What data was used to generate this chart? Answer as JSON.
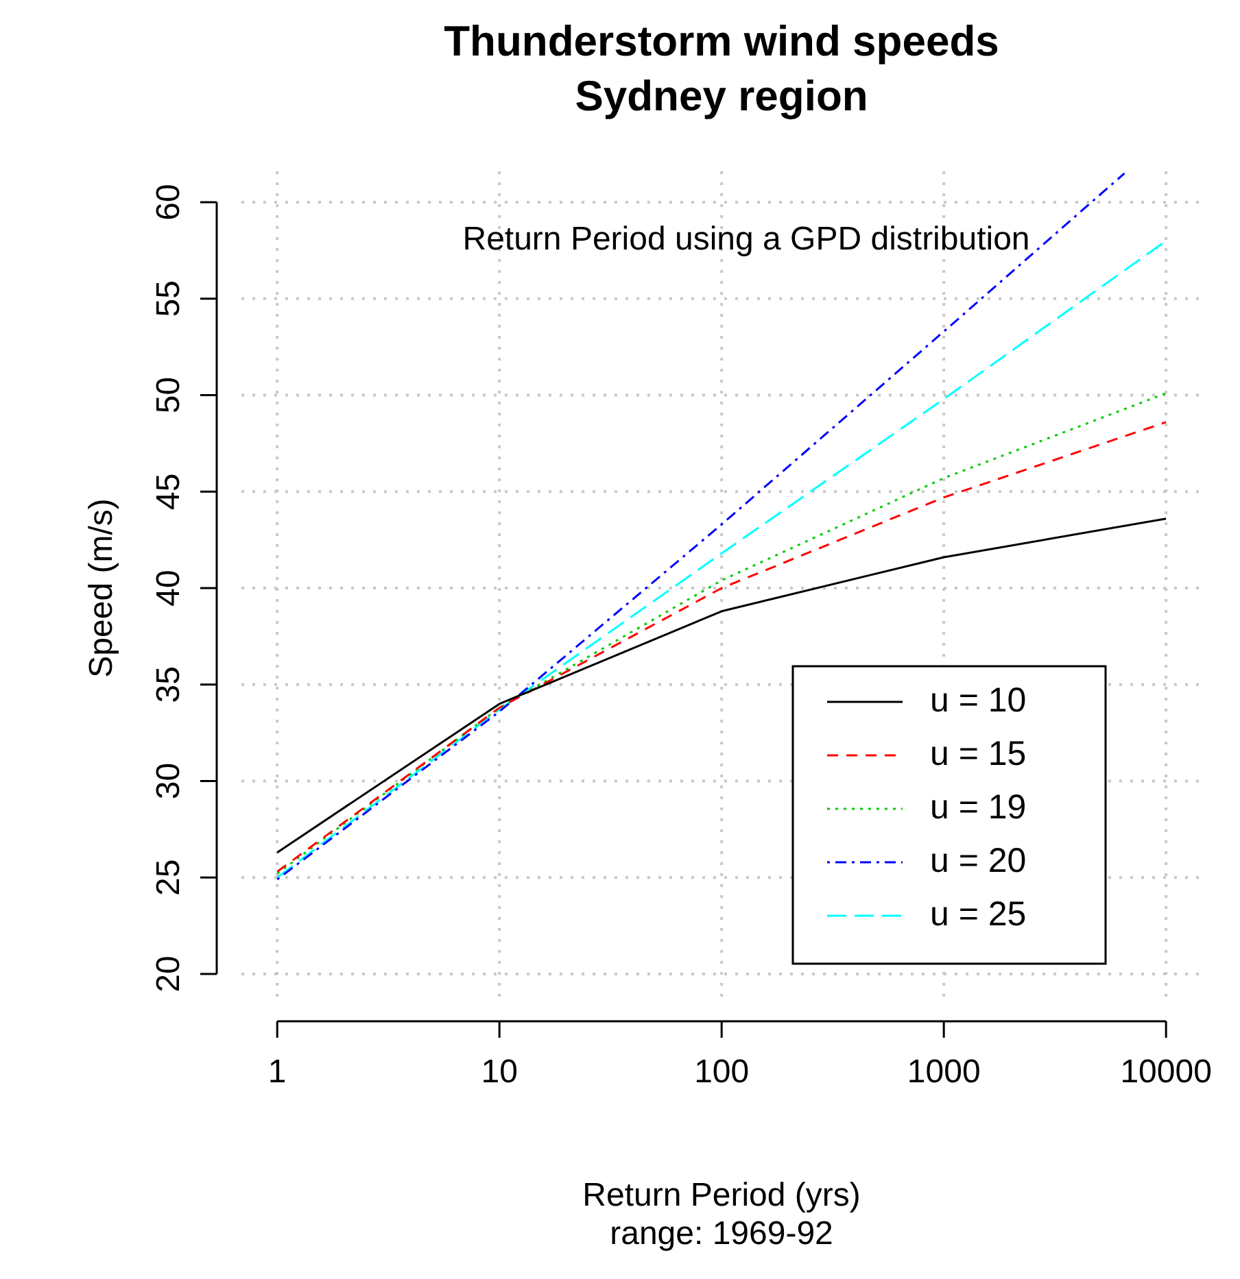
{
  "chart_data": {
    "type": "line",
    "title": "Thunderstorm wind speeds",
    "subtitle": "Sydney region",
    "xlabel": "Return Period (yrs)",
    "ylabel": "Speed (m/s)",
    "annotations": [
      "Return Period using a GPD distribution",
      "range: 1969-92"
    ],
    "x": [
      1,
      10,
      100,
      1000,
      10000
    ],
    "log": "x",
    "xlim": [
      0.69,
      14454
    ],
    "xticks": [
      1,
      10,
      100,
      1000,
      10000
    ],
    "ylim": [
      18.4,
      61.6
    ],
    "yticks": [
      20,
      25,
      30,
      35,
      40,
      45,
      50,
      55,
      60
    ],
    "grid": true,
    "legend": "bottom right",
    "marker": "none",
    "series": [
      {
        "name": "u = 10",
        "color": "#000000",
        "line_style": "solid",
        "values": [
          26.3,
          34.0,
          38.8,
          41.6,
          43.6
        ]
      },
      {
        "name": "u = 15",
        "color": "#ff0000",
        "line_style": "dashed",
        "values": [
          25.3,
          33.8,
          40.0,
          44.7,
          48.6
        ]
      },
      {
        "name": "u = 19",
        "color": "#00cd00",
        "line_style": "dotted",
        "values": [
          25.2,
          33.8,
          40.4,
          45.7,
          50.1
        ]
      },
      {
        "name": "u = 20",
        "color": "#0000ff",
        "line_style": "dashdot",
        "x": [
          1,
          10,
          100,
          1000,
          6500
        ],
        "values": [
          24.9,
          33.6,
          43.3,
          53.3,
          61.5
        ]
      },
      {
        "name": "u = 25",
        "color": "#00ffff",
        "line_style": "longdash",
        "values": [
          25.0,
          33.7,
          41.8,
          49.8,
          58.0
        ]
      }
    ]
  }
}
